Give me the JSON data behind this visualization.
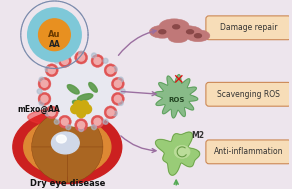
{
  "bg_color": "#ede5ed",
  "labels": {
    "dry_eye": "Dry eye disease",
    "mexo": "mExo@AA",
    "aa": "AA",
    "au": "Au",
    "m2": "M2",
    "ros": "ROS",
    "box1": "Damage repair",
    "box2": "Scavenging ROS",
    "box3": "Anti-inflammation"
  },
  "box_facecolor": "#f7ddb8",
  "box_edgecolor": "#cc8855",
  "arrow_color": "#9b6fa0",
  "arrow_up_color": "#55aa55",
  "eye_red": "#cc2020",
  "eye_orange": "#dd8833",
  "eye_brown": "#aa6622",
  "eye_cornea": "#d0d8e8",
  "exo_fill": "#e8e8f0",
  "exo_edge": "#8899bb",
  "aa_teal_fill": "#7ec8d8",
  "aa_teal_ring": "#55aabb",
  "au_gold": "#e89020",
  "au_text": "#6a3a00",
  "dot_color": "#7788aa",
  "red_bead": "#e05555",
  "red_bead_inner": "#f0aaaa",
  "green_leaf": "#5a9a48",
  "yellow_cluster": "#ccaa10",
  "dmg_cell": "#c07878",
  "dmg_dark": "#8a4848",
  "ros_green": "#88bb88",
  "ros_edge": "#559955",
  "ros_x": "#dd1111",
  "ros_text": "#224422",
  "m2_green": "#99cc77",
  "m2_edge": "#669944",
  "m2_nuc": "#bbdd99",
  "m2_text": "#333333"
}
